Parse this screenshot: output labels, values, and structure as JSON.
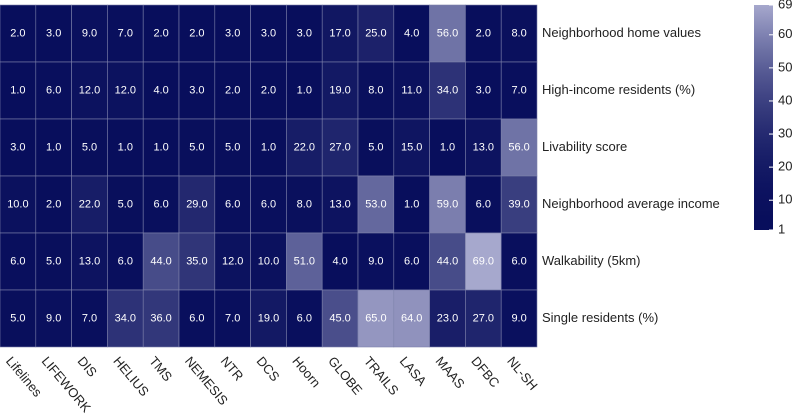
{
  "chart_data": {
    "type": "heatmap",
    "categories": [
      "Lifelines",
      "LIFEWORK",
      "DIS",
      "HELIUS",
      "TMS",
      "NEMESIS",
      "NTR",
      "DCS",
      "Hoorn",
      "GLOBE",
      "TRAILS",
      "LASA",
      "MAAS",
      "DFBC",
      "NL-SH"
    ],
    "series": [
      {
        "name": "Neighborhood home values",
        "values": [
          2,
          3,
          9,
          7,
          2,
          2,
          3,
          3,
          3,
          17,
          25,
          4,
          56,
          2,
          8
        ],
        "value_labels": [
          "2.0",
          "3.0",
          "9.0",
          "7.0",
          "2.0",
          "2.0",
          "3.0",
          "3.0",
          "3.0",
          "17.0",
          "25.0",
          "4.0",
          "56.0",
          "2.0",
          "8.0"
        ]
      },
      {
        "name": "High-income residents (%)",
        "values": [
          1,
          6,
          12,
          12,
          4,
          3,
          2,
          2,
          1,
          19,
          8,
          11,
          34,
          3,
          7
        ],
        "value_labels": [
          "1.0",
          "6.0",
          "12.0",
          "12.0",
          "4.0",
          "3.0",
          "2.0",
          "2.0",
          "1.0",
          "19.0",
          "8.0",
          "11.0",
          "34.0",
          "3.0",
          "7.0"
        ]
      },
      {
        "name": "Livability score",
        "values": [
          3,
          1,
          5,
          1,
          1,
          5,
          5,
          1,
          22,
          27,
          5,
          15,
          1,
          13,
          56
        ],
        "value_labels": [
          "3.0",
          "1.0",
          "5.0",
          "1.0",
          "1.0",
          "5.0",
          "5.0",
          "1.0",
          "22.0",
          "27.0",
          "5.0",
          "15.0",
          "1.0",
          "13.0",
          "56.0"
        ]
      },
      {
        "name": "Neighborhood average income",
        "values": [
          10,
          2,
          22,
          5,
          6,
          29,
          6,
          6,
          8,
          13,
          53,
          1,
          59,
          6,
          39
        ],
        "value_labels": [
          "10.0",
          "2.0",
          "22.0",
          "5.0",
          "6.0",
          "29.0",
          "6.0",
          "6.0",
          "8.0",
          "13.0",
          "53.0",
          "1.0",
          "59.0",
          "6.0",
          "39.0"
        ]
      },
      {
        "name": "Walkability (5km)",
        "values": [
          6,
          5,
          13,
          6,
          44,
          35,
          12,
          10,
          51,
          4,
          9,
          6,
          44,
          69,
          6
        ],
        "value_labels": [
          "6.0",
          "5.0",
          "13.0",
          "6.0",
          "44.0",
          "35.0",
          "12.0",
          "10.0",
          "51.0",
          "4.0",
          "9.0",
          "6.0",
          "44.0",
          "69.0",
          "6.0"
        ]
      },
      {
        "name": "Single residents (%)",
        "values": [
          5,
          9,
          7,
          34,
          36,
          6,
          7,
          19,
          6,
          45,
          65,
          64,
          23,
          27,
          9
        ],
        "value_labels": [
          "5.0",
          "9.0",
          "7.0",
          "34.0",
          "36.0",
          "6.0",
          "7.0",
          "19.0",
          "6.0",
          "45.0",
          "65.0",
          "64.0",
          "23.0",
          "27.0",
          "9.0"
        ]
      }
    ],
    "colormap": [
      "#080e5c",
      "#a6a8cd"
    ],
    "clim": [
      1,
      69
    ],
    "cticks": [
      1,
      10,
      20,
      30,
      40,
      50,
      60,
      69
    ]
  }
}
